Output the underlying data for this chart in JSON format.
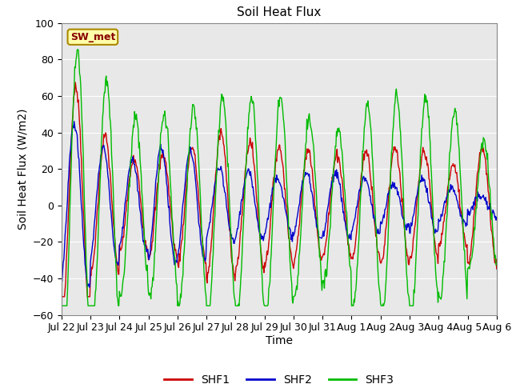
{
  "title": "Soil Heat Flux",
  "xlabel": "Time",
  "ylabel": "Soil Heat Flux (W/m2)",
  "ylim": [
    -60,
    100
  ],
  "yticks": [
    -60,
    -40,
    -20,
    0,
    20,
    40,
    60,
    80,
    100
  ],
  "x_tick_labels": [
    "Jul 22",
    "Jul 23",
    "Jul 24",
    "Jul 25",
    "Jul 26",
    "Jul 27",
    "Jul 28",
    "Jul 29",
    "Jul 30",
    "Jul 31",
    "Aug 1",
    "Aug 2",
    "Aug 3",
    "Aug 4",
    "Aug 5",
    "Aug 6"
  ],
  "shf1_color": "#cc0000",
  "shf2_color": "#0000cc",
  "shf3_color": "#00bb00",
  "bg_color": "#e8e8e8",
  "annotation_text": "SW_met",
  "annotation_bg": "#ffffaa",
  "annotation_border": "#aa8800",
  "annotation_text_color": "#880000",
  "legend_entries": [
    "SHF1",
    "SHF2",
    "SHF3"
  ],
  "title_fontsize": 11,
  "axis_fontsize": 10,
  "tick_fontsize": 9,
  "n_days": 15,
  "samples_per_day": 48,
  "shf1_amps": [
    65,
    38,
    25,
    28,
    32,
    40,
    35,
    32,
    30,
    28,
    30,
    32,
    30,
    22,
    32
  ],
  "shf2_amps": [
    45,
    32,
    25,
    32,
    30,
    20,
    18,
    16,
    18,
    18,
    15,
    12,
    15,
    10,
    5
  ],
  "shf3_amps": [
    85,
    70,
    48,
    50,
    55,
    60,
    60,
    60,
    48,
    42,
    55,
    60,
    60,
    52,
    35
  ],
  "shf1_phase": 0.0,
  "shf2_phase": 0.06,
  "shf3_phase": -0.05
}
